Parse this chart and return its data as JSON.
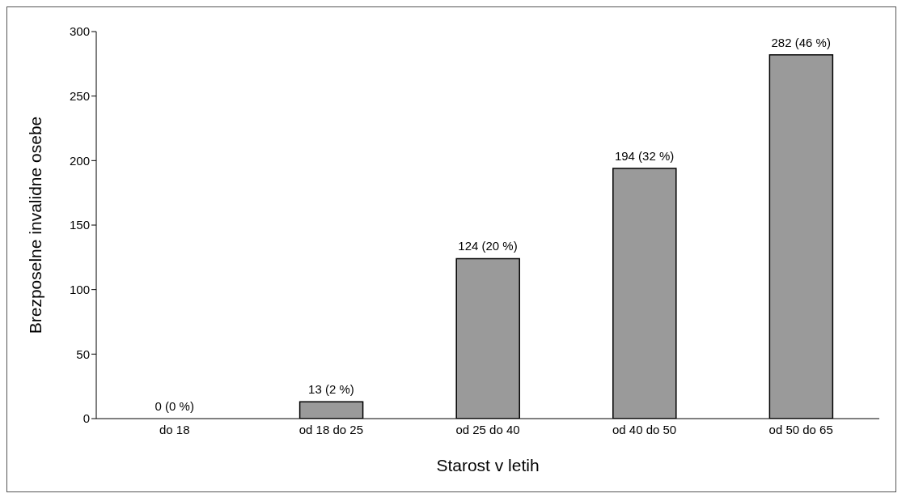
{
  "chart_data": {
    "type": "bar",
    "xlabel": "Starost v letih",
    "ylabel": "Brezposelne invalidne osebe",
    "categories": [
      "do 18",
      "od 18 do 25",
      "od 25 do 40",
      "od 40 do 50",
      "od 50 do 65"
    ],
    "values": [
      0,
      13,
      124,
      194,
      282
    ],
    "value_labels": [
      "0 (0 %)",
      "13 (2 %)",
      "124 (20 %)",
      "194 (32 %)",
      "282 (46 %)"
    ],
    "color": "#9a9a9a",
    "ylim": [
      0,
      300
    ],
    "yticks": [
      0,
      50,
      100,
      150,
      200,
      250,
      300
    ],
    "grid": false,
    "legend": false
  }
}
